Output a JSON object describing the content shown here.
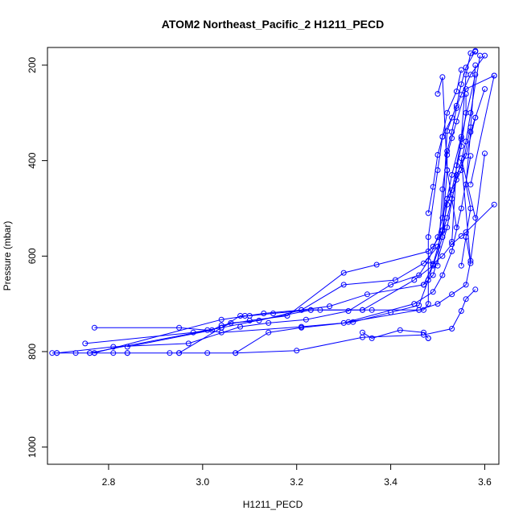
{
  "chart_data": {
    "type": "line",
    "title": "ATOM2 Northeast_Pacific_2 H1211_PECD",
    "xlabel": "H1211_PECD",
    "ylabel": "Pressure (mbar)",
    "xlim": [
      2.67,
      3.63
    ],
    "ylim": [
      1036,
      163
    ],
    "y_reversed": true,
    "x_ticks": [
      2.8,
      3.0,
      3.2,
      3.4,
      3.6
    ],
    "x_tick_labels": [
      "2.8",
      "3.0",
      "3.2",
      "3.4",
      "3.6"
    ],
    "y_ticks": [
      200,
      400,
      600,
      800,
      1000
    ],
    "y_tick_labels": [
      "200",
      "400",
      "600",
      "800",
      "1000"
    ],
    "grid": false,
    "legend": "none",
    "line_color": "#0000ff",
    "marker": "open-circle",
    "series": [
      {
        "x": [
          2.68,
          2.69,
          2.73,
          2.76,
          2.77,
          2.81,
          2.84
        ],
        "y": [
          803,
          803,
          803,
          803,
          803,
          803,
          803
        ]
      },
      {
        "x": [
          2.84,
          2.93,
          2.95,
          3.01,
          3.07,
          3.2,
          3.34,
          3.47,
          3.53,
          3.55,
          3.56,
          3.58
        ],
        "y": [
          803,
          803,
          803,
          803,
          803,
          798,
          770,
          765,
          752,
          715,
          690,
          670
        ]
      },
      {
        "x": [
          2.69,
          2.81,
          2.97,
          3.08,
          3.14,
          3.22,
          3.31,
          3.4,
          3.46,
          3.48,
          3.5,
          3.52,
          3.55,
          3.57,
          3.58
        ],
        "y": [
          803,
          790,
          783,
          748,
          740,
          733,
          715,
          660,
          640,
          610,
          560,
          480,
          420,
          330,
          200
        ]
      },
      {
        "x": [
          2.77,
          2.95,
          3.01,
          3.04,
          3.21,
          3.3,
          3.45,
          3.49,
          3.51,
          3.53,
          3.55,
          3.57
        ],
        "y": [
          750,
          750,
          755,
          760,
          748,
          740,
          700,
          675,
          640,
          590,
          500,
          390
        ]
      },
      {
        "x": [
          2.75,
          2.98,
          3.04,
          3.08,
          3.09,
          3.1,
          3.15,
          3.23,
          3.34,
          3.45,
          3.49,
          3.51,
          3.52,
          3.53,
          3.55,
          3.58
        ],
        "y": [
          783,
          760,
          750,
          725,
          725,
          725,
          720,
          713,
          713,
          650,
          620,
          560,
          480,
          430,
          350,
          220
        ]
      },
      {
        "x": [
          2.76,
          3.04,
          3.06,
          3.12,
          3.21,
          3.3,
          3.41,
          3.47,
          3.5,
          3.52,
          3.54,
          3.56,
          3.57,
          3.59
        ],
        "y": [
          803,
          750,
          740,
          735,
          713,
          660,
          650,
          615,
          580,
          520,
          440,
          360,
          300,
          180
        ]
      },
      {
        "x": [
          2.77,
          3.04,
          3.13,
          3.21,
          3.27,
          3.35,
          3.47,
          3.49,
          3.52,
          3.54,
          3.56,
          3.58,
          3.6
        ],
        "y": [
          803,
          733,
          720,
          713,
          705,
          680,
          660,
          640,
          540,
          430,
          390,
          310,
          250
        ]
      },
      {
        "x": [
          2.84,
          3.02,
          3.04,
          3.1,
          3.18,
          3.3,
          3.37,
          3.48,
          3.49,
          3.51,
          3.52,
          3.53,
          3.55,
          3.56,
          3.56
        ],
        "y": [
          790,
          755,
          745,
          735,
          725,
          635,
          618,
          590,
          580,
          548,
          492,
          462,
          370,
          300,
          260
        ]
      },
      {
        "x": [
          2.95,
          3.04,
          3.23,
          3.25,
          3.34,
          3.36,
          3.46,
          3.5,
          3.53,
          3.56,
          3.57,
          3.6
        ],
        "y": [
          803,
          750,
          713,
          713,
          713,
          713,
          713,
          700,
          680,
          660,
          610,
          385
        ]
      },
      {
        "x": [
          3.07,
          3.14,
          3.21,
          3.32,
          3.4,
          3.46,
          3.48,
          3.49,
          3.51,
          3.53,
          3.55,
          3.56,
          3.62
        ],
        "y": [
          803,
          760,
          750,
          738,
          718,
          703,
          650,
          616,
          600,
          575,
          558,
          550,
          492
        ]
      },
      {
        "x": [
          3.31,
          3.46,
          3.47,
          3.48,
          3.48,
          3.5,
          3.51,
          3.52,
          3.54,
          3.55
        ],
        "y": [
          738,
          713,
          713,
          700,
          560,
          420,
          350,
          300,
          255,
          210
        ]
      },
      {
        "x": [
          3.34,
          3.36,
          3.42,
          3.47,
          3.48,
          3.48
        ],
        "y": [
          760,
          772,
          755,
          760,
          772,
          772
        ]
      },
      {
        "x": [
          3.47,
          3.49,
          3.51,
          3.52,
          3.52,
          3.53,
          3.54
        ],
        "y": [
          660,
          618,
          545,
          420,
          380,
          340,
          290
        ]
      },
      {
        "x": [
          3.48,
          3.49,
          3.5,
          3.51,
          3.53,
          3.55,
          3.57,
          3.6
        ],
        "y": [
          510,
          455,
          388,
          350,
          310,
          262,
          220,
          180
        ]
      },
      {
        "x": [
          3.5,
          3.51,
          3.52,
          3.53,
          3.54,
          3.56,
          3.62,
          3.62,
          3.57
        ],
        "y": [
          620,
          460,
          388,
          353,
          318,
          250,
          222,
          222,
          450
        ]
      },
      {
        "x": [
          3.51,
          3.52,
          3.54,
          3.55,
          3.56,
          3.58
        ],
        "y": [
          520,
          338,
          285,
          240,
          205,
          170
        ]
      },
      {
        "x": [
          3.53,
          3.54,
          3.55,
          3.56,
          3.57,
          3.58
        ],
        "y": [
          570,
          410,
          355,
          220,
          175,
          172
        ]
      },
      {
        "x": [
          3.55,
          3.57,
          3.56,
          3.57,
          3.58
        ],
        "y": [
          620,
          500,
          450,
          340,
          310
        ]
      },
      {
        "x": [
          3.5,
          3.51,
          3.52,
          3.53,
          3.54
        ],
        "y": [
          260,
          225,
          420,
          480,
          540
        ]
      },
      {
        "x": [
          3.56,
          3.57,
          3.55,
          3.58
        ],
        "y": [
          560,
          615,
          395,
          520
        ]
      }
    ]
  }
}
